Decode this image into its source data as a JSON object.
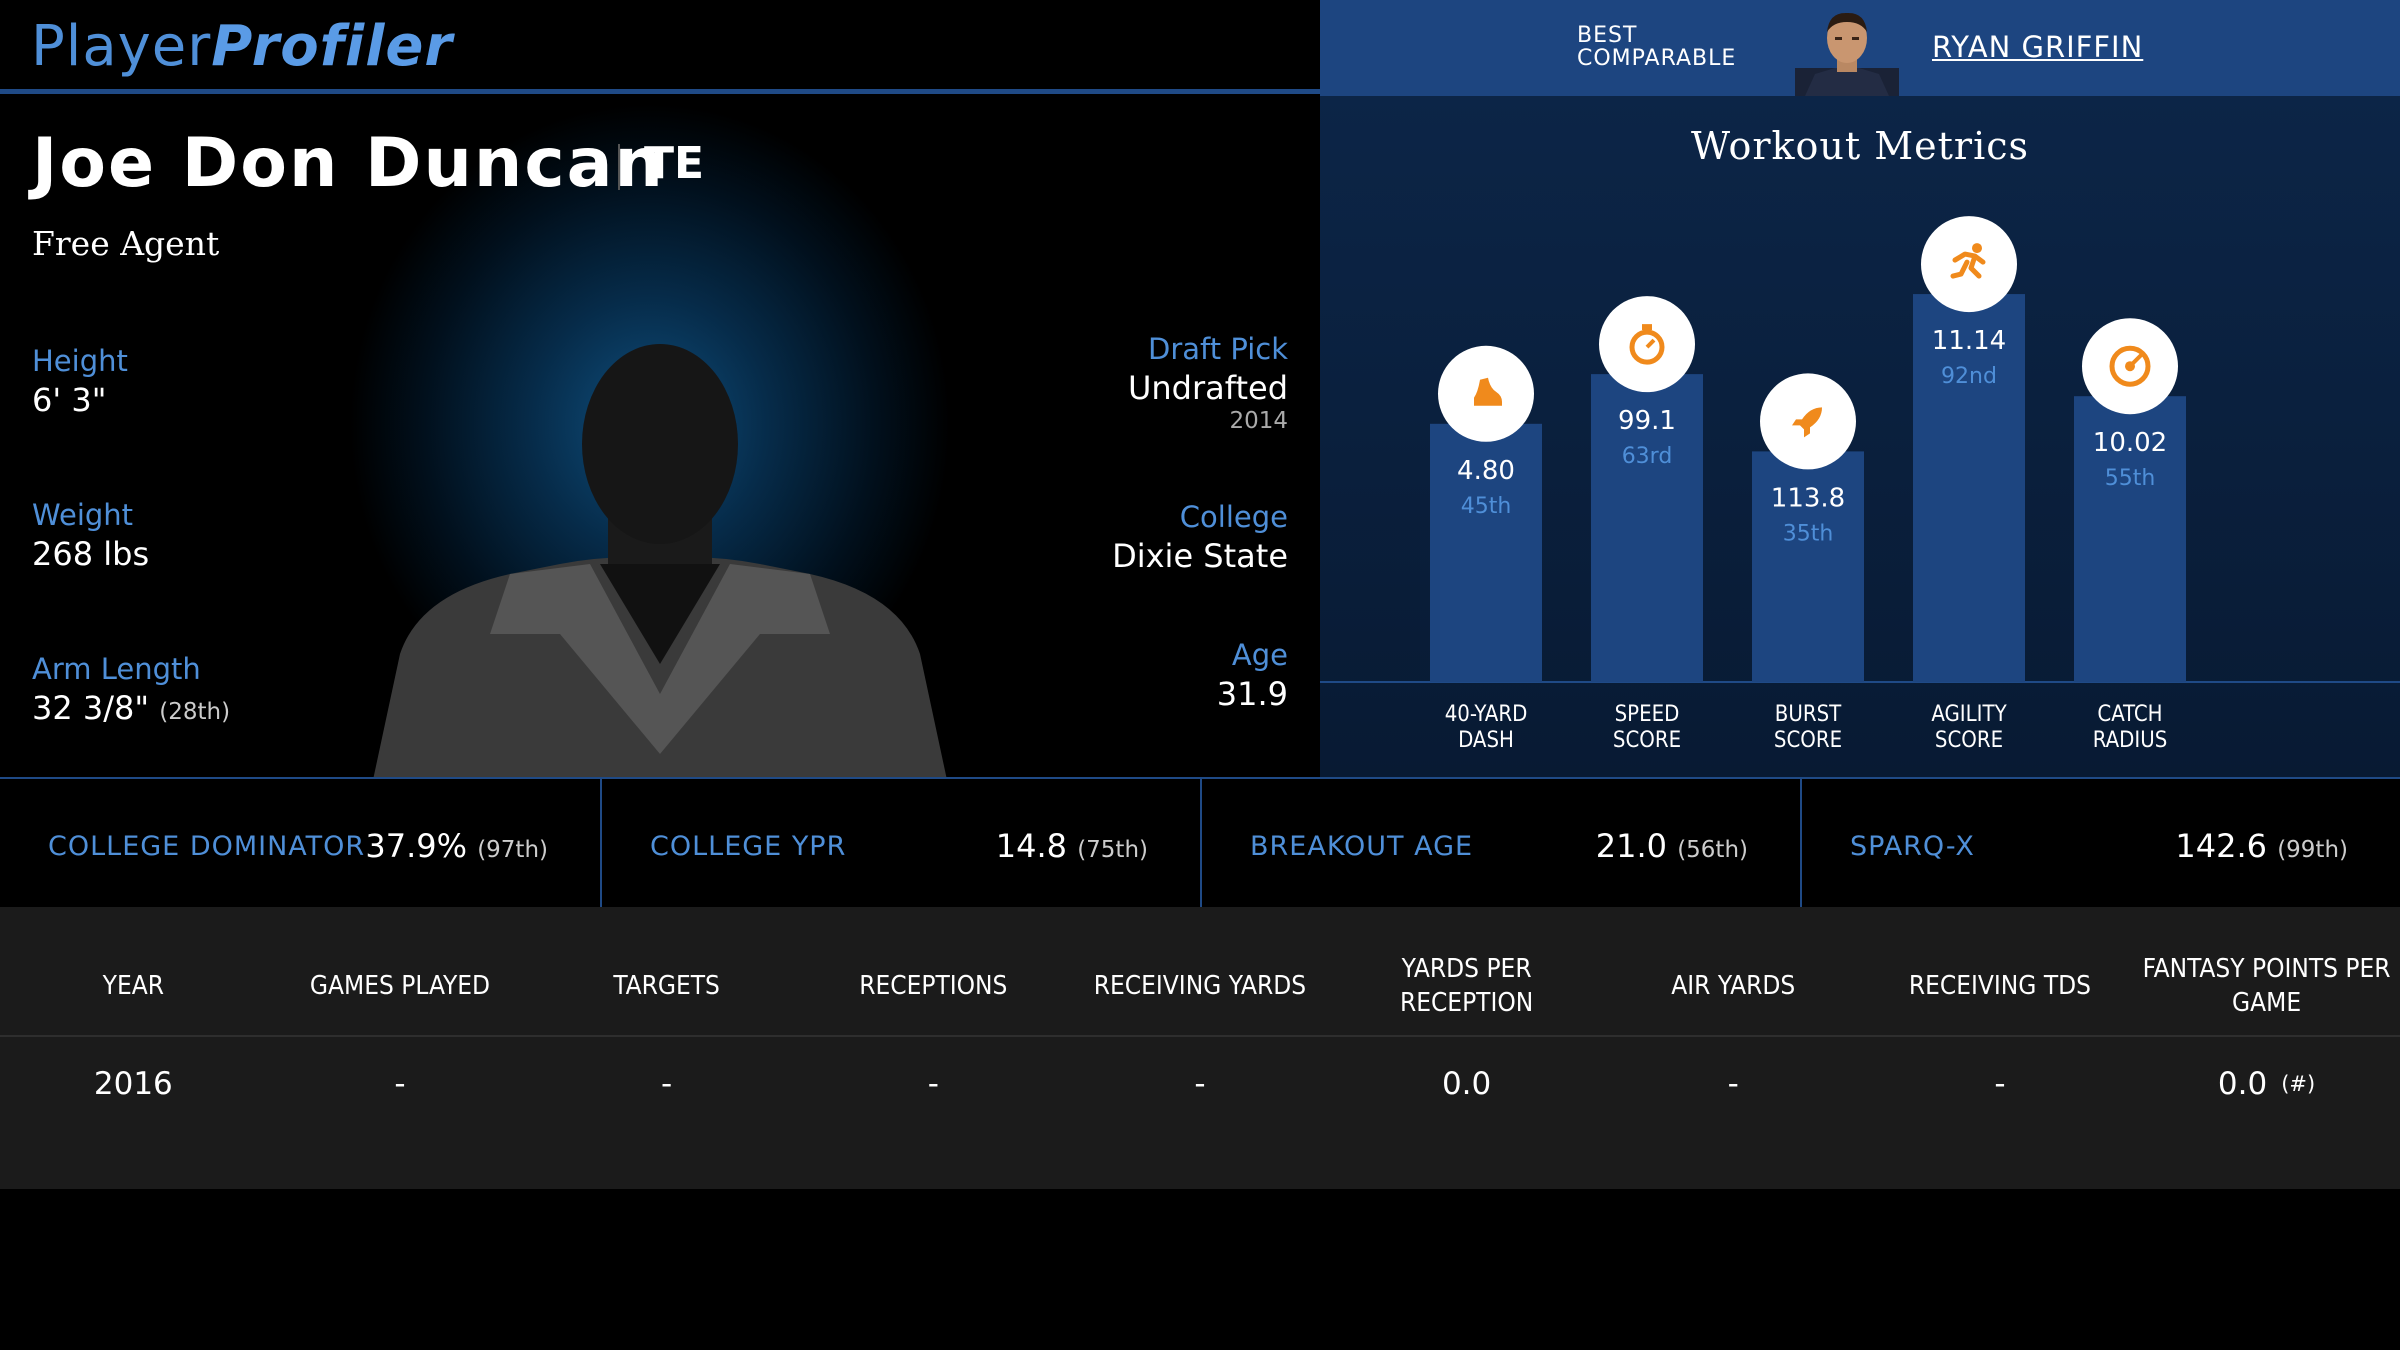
{
  "brand": {
    "part1": "Player",
    "part2": "Profiler"
  },
  "best_comparable": {
    "label_line1": "BEST",
    "label_line2": "COMPARABLE",
    "name": "RYAN GRIFFIN"
  },
  "player": {
    "name": "Joe Don Duncan",
    "position": "TE",
    "team": "Free Agent",
    "height": {
      "label": "Height",
      "value": "6' 3\""
    },
    "weight": {
      "label": "Weight",
      "value": "268 lbs"
    },
    "arm_length": {
      "label": "Arm Length",
      "value": "32 3/8\"",
      "rank": "(28th)"
    },
    "draft_pick": {
      "label": "Draft Pick",
      "value": "Undrafted",
      "year": "2014"
    },
    "college": {
      "label": "College",
      "value": "Dixie State"
    },
    "age": {
      "label": "Age",
      "value": "31.9"
    }
  },
  "workout": {
    "title": "Workout Metrics",
    "chart_data": {
      "type": "bar",
      "title": "Workout Metrics",
      "categories": [
        "40-YARD DASH",
        "SPEED SCORE",
        "BURST SCORE",
        "AGILITY SCORE",
        "CATCH RADIUS"
      ],
      "label_lines": [
        [
          "40-YARD",
          "DASH"
        ],
        [
          "SPEED",
          "SCORE"
        ],
        [
          "BURST",
          "SCORE"
        ],
        [
          "AGILITY",
          "SCORE"
        ],
        [
          "CATCH",
          "RADIUS"
        ]
      ],
      "values": [
        "4.80",
        "99.1",
        "113.8",
        "11.14",
        "10.02"
      ],
      "percentiles": [
        45,
        63,
        35,
        92,
        55
      ],
      "percentile_labels": [
        "45th",
        "63rd",
        "35th",
        "92nd",
        "55th"
      ],
      "icons": [
        "shoe-icon",
        "stopwatch-icon",
        "rocket-icon",
        "runner-icon",
        "target-icon"
      ],
      "bar_color": "#1d4580",
      "icon_color": "#f08a1c"
    }
  },
  "metrics": [
    {
      "label": "COLLEGE DOMINATOR",
      "value": "37.9%",
      "rank": "(97th)"
    },
    {
      "label": "COLLEGE YPR",
      "value": "14.8",
      "rank": "(75th)"
    },
    {
      "label": "BREAKOUT AGE",
      "value": "21.0",
      "rank": "(56th)"
    },
    {
      "label": "SPARQ-X",
      "value": "142.6",
      "rank": "(99th)"
    }
  ],
  "table": {
    "headers": [
      "YEAR",
      "GAMES PLAYED",
      "TARGETS",
      "RECEPTIONS",
      "RECEIVING YARDS",
      "YARDS PER RECEPTION",
      "AIR YARDS",
      "RECEIVING TDS",
      "FANTASY POINTS PER GAME"
    ],
    "rows": [
      {
        "cells": [
          "2016",
          "-",
          "-",
          "-",
          "-",
          "0.0",
          "-",
          "-",
          "0.0"
        ],
        "note": "(#)"
      }
    ]
  },
  "colors": {
    "accent": "#4f8fd8",
    "panel": "#1d4580",
    "icon": "#f08a1c"
  }
}
